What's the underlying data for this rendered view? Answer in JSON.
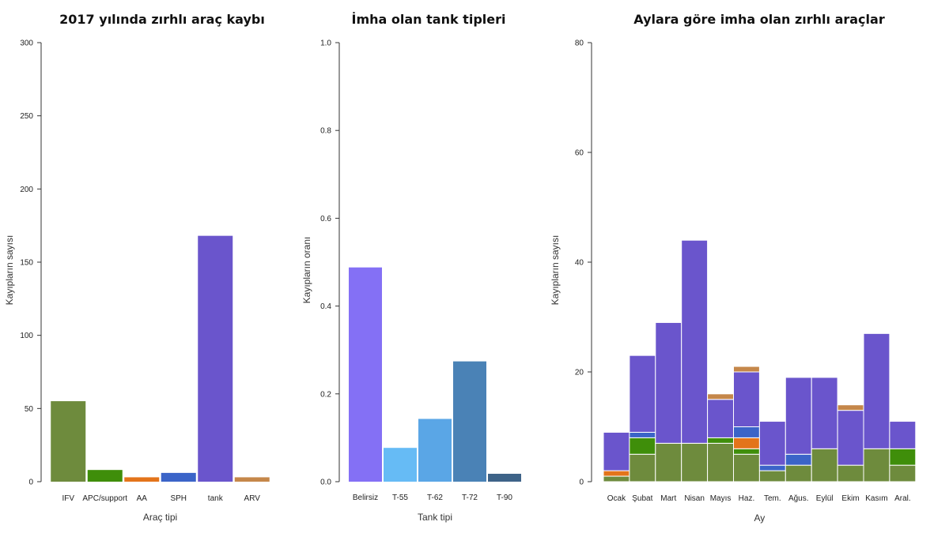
{
  "chart_data": [
    {
      "type": "bar",
      "title": "2017 yılında zırhlı araç kaybı",
      "xlabel": "Araç tipi",
      "ylabel": "Kayıpların sayısı",
      "ylim": [
        0,
        300
      ],
      "yticks": [
        0,
        50,
        100,
        150,
        200,
        250,
        300
      ],
      "categories": [
        "IFV",
        "APC/support",
        "AA",
        "SPH",
        "tank",
        "ARV"
      ],
      "values": [
        55,
        8,
        3,
        6,
        168,
        3
      ],
      "colors": [
        "#6e8b3d",
        "#3f8e0a",
        "#e3741b",
        "#3b64c8",
        "#6a55cc",
        "#c5874a"
      ],
      "grid": false
    },
    {
      "type": "bar",
      "title": "İmha olan tank tipleri",
      "xlabel": "Tank tipi",
      "ylabel": "Kayıpların oranı",
      "ylim": [
        0,
        1.0
      ],
      "yticks": [
        "0.0",
        "0.2",
        "0.4",
        "0.6",
        "0.8",
        "1.0"
      ],
      "categories": [
        "Belirsiz",
        "T-55",
        "T-62",
        "T-72",
        "T-90"
      ],
      "values": [
        0.488,
        0.077,
        0.143,
        0.274,
        0.018
      ],
      "colors": [
        "#8470f5",
        "#66bbf5",
        "#5aa6e6",
        "#4a82b6",
        "#3e6388"
      ],
      "grid": false
    },
    {
      "type": "bar",
      "stacked": true,
      "title": "Aylara göre imha olan zırhlı araçlar",
      "xlabel": "Ay",
      "ylabel": "Kayıpların sayısı",
      "ylim": [
        0,
        80
      ],
      "yticks": [
        0,
        20,
        40,
        60,
        80
      ],
      "categories": [
        "Ocak",
        "Şubat",
        "Mart",
        "Nisan",
        "Mayıs",
        "Haz.",
        "Tem.",
        "Ağus.",
        "Eylül",
        "Ekim",
        "Kasım",
        "Aral."
      ],
      "series": [
        {
          "values": [
            1,
            5,
            7,
            7,
            7,
            5,
            2,
            3,
            6,
            3,
            6,
            3
          ],
          "color": "#6e8b3d"
        },
        {
          "values": [
            0,
            3,
            0,
            0,
            1,
            1,
            0,
            0,
            0,
            0,
            0,
            3
          ],
          "color": "#3f8e0a"
        },
        {
          "values": [
            1,
            0,
            0,
            0,
            0,
            2,
            0,
            0,
            0,
            0,
            0,
            0
          ],
          "color": "#e3741b"
        },
        {
          "values": [
            0,
            1,
            0,
            0,
            0,
            2,
            1,
            2,
            0,
            0,
            0,
            0
          ],
          "color": "#3b64c8"
        },
        {
          "values": [
            7,
            14,
            22,
            37,
            7,
            10,
            8,
            14,
            13,
            10,
            21,
            5
          ],
          "color": "#6a55cc"
        },
        {
          "values": [
            0,
            0,
            0,
            0,
            1,
            1,
            0,
            0,
            0,
            1,
            0,
            0
          ],
          "color": "#c5874a"
        }
      ],
      "grid": false
    }
  ]
}
